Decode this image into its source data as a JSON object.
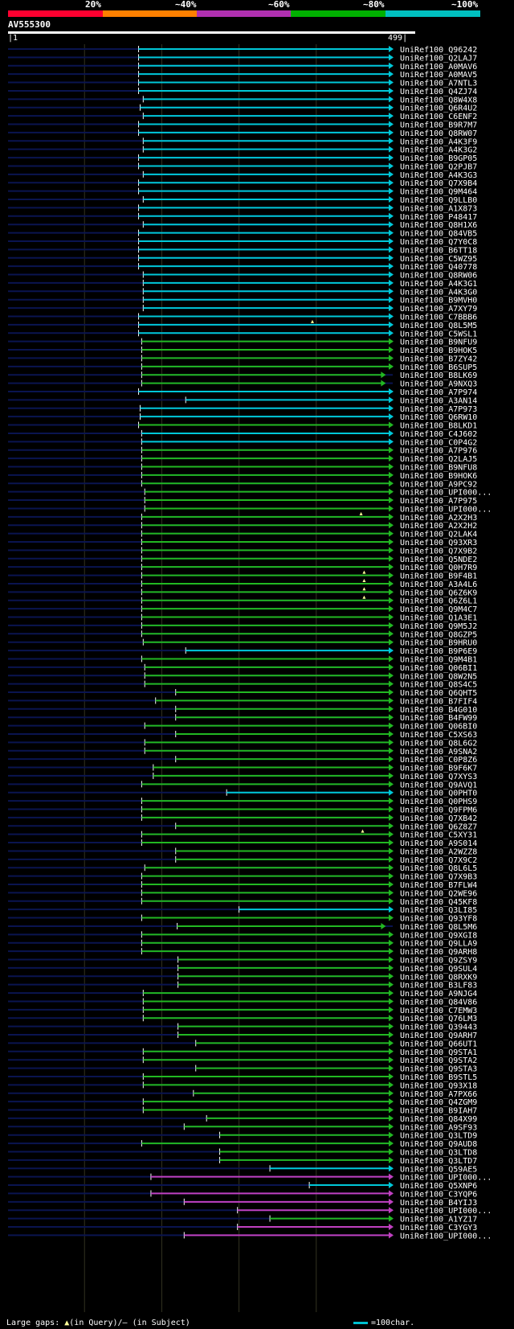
{
  "scale": {
    "labels": [
      "20%",
      "~40%",
      "~60%",
      "~80%",
      "~100%"
    ],
    "colors": [
      "#ff0030",
      "#ff8000",
      "#b030b0",
      "#00b000",
      "#00c0c0"
    ]
  },
  "query": {
    "name": "AV555300",
    "start_label": "1",
    "end_label": "499",
    "length": 499
  },
  "footer": {
    "gaps_prefix": "Large gaps: ",
    "gaps_query": "(in Query)/",
    "gaps_dash": "–",
    "gaps_subject": " (in Subject)",
    "legend_label": "=100char."
  },
  "colors": {
    "cyan": "#00c8d8",
    "green": "#22b822",
    "magenta": "#c040c0",
    "dim": "#0a1450",
    "grid": "#333322",
    "gap_marker": "#ffff99"
  },
  "chart_data": {
    "type": "alignment",
    "x_range": [
      1,
      499
    ],
    "hits": [
      {
        "name": "UniRef100_Q96242",
        "start": 170,
        "end": 499,
        "color": "cyan"
      },
      {
        "name": "UniRef100_Q2LAJ7",
        "start": 170,
        "end": 499,
        "color": "cyan"
      },
      {
        "name": "UniRef100_A0MAV6",
        "start": 170,
        "end": 499,
        "color": "cyan"
      },
      {
        "name": "UniRef100_A0MAV5",
        "start": 170,
        "end": 499,
        "color": "cyan"
      },
      {
        "name": "UniRef100_A7NTL3",
        "start": 170,
        "end": 499,
        "color": "cyan"
      },
      {
        "name": "UniRef100_Q4ZJ74",
        "start": 170,
        "end": 499,
        "color": "cyan"
      },
      {
        "name": "UniRef100_Q8W4X8",
        "start": 176,
        "end": 499,
        "color": "cyan"
      },
      {
        "name": "UniRef100_Q6R4U2",
        "start": 172,
        "end": 499,
        "color": "cyan"
      },
      {
        "name": "UniRef100_C6ENF2",
        "start": 176,
        "end": 499,
        "color": "cyan"
      },
      {
        "name": "UniRef100_B9R7M7",
        "start": 170,
        "end": 499,
        "color": "cyan"
      },
      {
        "name": "UniRef100_Q8RW07",
        "start": 170,
        "end": 499,
        "color": "cyan"
      },
      {
        "name": "UniRef100_A4K3F9",
        "start": 176,
        "end": 499,
        "color": "cyan"
      },
      {
        "name": "UniRef100_A4K3G2",
        "start": 176,
        "end": 499,
        "color": "cyan"
      },
      {
        "name": "UniRef100_B9GP05",
        "start": 170,
        "end": 499,
        "color": "cyan"
      },
      {
        "name": "UniRef100_Q2PJB7",
        "start": 170,
        "end": 499,
        "color": "cyan"
      },
      {
        "name": "UniRef100_A4K3G3",
        "start": 176,
        "end": 499,
        "color": "cyan"
      },
      {
        "name": "UniRef100_Q7X9B4",
        "start": 170,
        "end": 499,
        "color": "cyan"
      },
      {
        "name": "UniRef100_Q9M464",
        "start": 170,
        "end": 499,
        "color": "cyan"
      },
      {
        "name": "UniRef100_Q9LLB0",
        "start": 176,
        "end": 499,
        "color": "cyan"
      },
      {
        "name": "UniRef100_A1X873",
        "start": 170,
        "end": 499,
        "color": "cyan"
      },
      {
        "name": "UniRef100_P48417",
        "start": 170,
        "end": 499,
        "color": "cyan"
      },
      {
        "name": "UniRef100_Q8H1X6",
        "start": 176,
        "end": 499,
        "color": "cyan"
      },
      {
        "name": "UniRef100_Q84VB5",
        "start": 170,
        "end": 499,
        "color": "cyan"
      },
      {
        "name": "UniRef100_Q7Y0C8",
        "start": 170,
        "end": 499,
        "color": "cyan"
      },
      {
        "name": "UniRef100_B6TT18",
        "start": 170,
        "end": 499,
        "color": "cyan"
      },
      {
        "name": "UniRef100_C5WZ95",
        "start": 170,
        "end": 499,
        "color": "cyan"
      },
      {
        "name": "UniRef100_Q40778",
        "start": 170,
        "end": 499,
        "color": "cyan"
      },
      {
        "name": "UniRef100_Q8RW06",
        "start": 176,
        "end": 499,
        "color": "cyan"
      },
      {
        "name": "UniRef100_A4K3G1",
        "start": 176,
        "end": 499,
        "color": "cyan"
      },
      {
        "name": "UniRef100_A4K3G0",
        "start": 176,
        "end": 499,
        "color": "cyan"
      },
      {
        "name": "UniRef100_B9MVH0",
        "start": 176,
        "end": 499,
        "color": "cyan"
      },
      {
        "name": "UniRef100_A7XY79",
        "start": 176,
        "end": 499,
        "color": "cyan"
      },
      {
        "name": "UniRef100_C7BBB6",
        "start": 170,
        "end": 499,
        "color": "cyan"
      },
      {
        "name": "UniRef100_Q8L5M5",
        "start": 170,
        "end": 499,
        "color": "cyan",
        "gap": 395
      },
      {
        "name": "UniRef100_C5WSL1",
        "start": 170,
        "end": 499,
        "color": "cyan"
      },
      {
        "name": "UniRef100_B9NFU9",
        "start": 174,
        "end": 499,
        "color": "green"
      },
      {
        "name": "UniRef100_B9HOK5",
        "start": 174,
        "end": 499,
        "color": "green"
      },
      {
        "name": "UniRef100_B7ZY42",
        "start": 174,
        "end": 499,
        "color": "green"
      },
      {
        "name": "UniRef100_B6SUP5",
        "start": 174,
        "end": 499,
        "color": "green"
      },
      {
        "name": "UniRef100_B8LK69",
        "start": 174,
        "end": 489,
        "color": "green"
      },
      {
        "name": "UniRef100_A9NXQ3",
        "start": 174,
        "end": 489,
        "color": "green"
      },
      {
        "name": "UniRef100_A7P974",
        "start": 170,
        "end": 499,
        "color": "cyan"
      },
      {
        "name": "UniRef100_A3AN14",
        "start": 231,
        "end": 499,
        "color": "cyan"
      },
      {
        "name": "UniRef100_A7P973",
        "start": 172,
        "end": 499,
        "color": "cyan"
      },
      {
        "name": "UniRef100_Q6RW10",
        "start": 172,
        "end": 499,
        "color": "cyan"
      },
      {
        "name": "UniRef100_B8LKD1",
        "start": 170,
        "end": 499,
        "color": "green"
      },
      {
        "name": "UniRef100_C4J602",
        "start": 174,
        "end": 499,
        "color": "cyan"
      },
      {
        "name": "UniRef100_C0P4G2",
        "start": 174,
        "end": 499,
        "color": "cyan"
      },
      {
        "name": "UniRef100_A7P976",
        "start": 174,
        "end": 499,
        "color": "green"
      },
      {
        "name": "UniRef100_Q2LAJ5",
        "start": 174,
        "end": 499,
        "color": "green"
      },
      {
        "name": "UniRef100_B9NFU8",
        "start": 174,
        "end": 499,
        "color": "green"
      },
      {
        "name": "UniRef100_B9HOK6",
        "start": 174,
        "end": 499,
        "color": "green"
      },
      {
        "name": "UniRef100_A9PC92",
        "start": 174,
        "end": 499,
        "color": "green"
      },
      {
        "name": "UniRef100_UPI000...",
        "start": 178,
        "end": 499,
        "color": "green"
      },
      {
        "name": "UniRef100_A7P975",
        "start": 178,
        "end": 499,
        "color": "green"
      },
      {
        "name": "UniRef100_UPI000...",
        "start": 178,
        "end": 499,
        "color": "green"
      },
      {
        "name": "UniRef100_A2X2H3",
        "start": 174,
        "end": 499,
        "color": "green",
        "gap": 458
      },
      {
        "name": "UniRef100_A2X2H2",
        "start": 174,
        "end": 499,
        "color": "green"
      },
      {
        "name": "UniRef100_Q2LAK4",
        "start": 174,
        "end": 499,
        "color": "green"
      },
      {
        "name": "UniRef100_Q93XR3",
        "start": 174,
        "end": 499,
        "color": "green"
      },
      {
        "name": "UniRef100_Q7X9B2",
        "start": 174,
        "end": 499,
        "color": "green"
      },
      {
        "name": "UniRef100_Q5NDE2",
        "start": 174,
        "end": 499,
        "color": "green"
      },
      {
        "name": "UniRef100_Q0H7R9",
        "start": 174,
        "end": 499,
        "color": "green"
      },
      {
        "name": "UniRef100_B9F4B1",
        "start": 174,
        "end": 499,
        "color": "green",
        "gap": 462
      },
      {
        "name": "UniRef100_A3A4L6",
        "start": 174,
        "end": 499,
        "color": "green",
        "gap": 462
      },
      {
        "name": "UniRef100_Q6Z6K9",
        "start": 174,
        "end": 499,
        "color": "green",
        "gap": 462
      },
      {
        "name": "UniRef100_Q6Z6L1",
        "start": 174,
        "end": 499,
        "color": "green",
        "gap": 462
      },
      {
        "name": "UniRef100_Q9M4C7",
        "start": 174,
        "end": 499,
        "color": "green"
      },
      {
        "name": "UniRef100_Q1A3E1",
        "start": 174,
        "end": 499,
        "color": "green"
      },
      {
        "name": "UniRef100_Q9M5J2",
        "start": 174,
        "end": 499,
        "color": "green"
      },
      {
        "name": "UniRef100_Q8GZP5",
        "start": 174,
        "end": 499,
        "color": "green"
      },
      {
        "name": "UniRef100_B9HRU0",
        "start": 176,
        "end": 499,
        "color": "green"
      },
      {
        "name": "UniRef100_B9P6E9",
        "start": 231,
        "end": 499,
        "color": "cyan"
      },
      {
        "name": "UniRef100_Q9M4B1",
        "start": 174,
        "end": 499,
        "color": "green"
      },
      {
        "name": "UniRef100_Q06BI1",
        "start": 178,
        "end": 499,
        "color": "green"
      },
      {
        "name": "UniRef100_Q8W2N5",
        "start": 178,
        "end": 499,
        "color": "green"
      },
      {
        "name": "UniRef100_Q8S4C5",
        "start": 178,
        "end": 499,
        "color": "green"
      },
      {
        "name": "UniRef100_Q6QHT5",
        "start": 218,
        "end": 499,
        "color": "green"
      },
      {
        "name": "UniRef100_B7FIF4",
        "start": 192,
        "end": 499,
        "color": "green"
      },
      {
        "name": "UniRef100_B4G010",
        "start": 218,
        "end": 499,
        "color": "green"
      },
      {
        "name": "UniRef100_B4FW99",
        "start": 218,
        "end": 499,
        "color": "green"
      },
      {
        "name": "UniRef100_Q06BI0",
        "start": 178,
        "end": 499,
        "color": "green"
      },
      {
        "name": "UniRef100_C5XS63",
        "start": 218,
        "end": 499,
        "color": "green"
      },
      {
        "name": "UniRef100_Q8L6G2",
        "start": 178,
        "end": 499,
        "color": "green"
      },
      {
        "name": "UniRef100_A9SNA2",
        "start": 178,
        "end": 499,
        "color": "green"
      },
      {
        "name": "UniRef100_C0P8Z6",
        "start": 218,
        "end": 499,
        "color": "green"
      },
      {
        "name": "UniRef100_B9F6K7",
        "start": 189,
        "end": 499,
        "color": "green"
      },
      {
        "name": "UniRef100_Q7XYS3",
        "start": 189,
        "end": 499,
        "color": "green"
      },
      {
        "name": "UniRef100_Q9AVQ1",
        "start": 174,
        "end": 499,
        "color": "green"
      },
      {
        "name": "UniRef100_Q0PHT0",
        "start": 284,
        "end": 499,
        "color": "cyan"
      },
      {
        "name": "UniRef100_Q0PHS9",
        "start": 174,
        "end": 499,
        "color": "green"
      },
      {
        "name": "UniRef100_Q9FPM6",
        "start": 174,
        "end": 499,
        "color": "green"
      },
      {
        "name": "UniRef100_Q7XB42",
        "start": 174,
        "end": 499,
        "color": "green"
      },
      {
        "name": "UniRef100_Q6Z8Z7",
        "start": 218,
        "end": 499,
        "color": "green"
      },
      {
        "name": "UniRef100_C5XY31",
        "start": 174,
        "end": 499,
        "color": "green",
        "gap": 460
      },
      {
        "name": "UniRef100_A9S014",
        "start": 174,
        "end": 499,
        "color": "green"
      },
      {
        "name": "UniRef100_A2WZZ8",
        "start": 218,
        "end": 499,
        "color": "green"
      },
      {
        "name": "UniRef100_Q7X9C2",
        "start": 218,
        "end": 499,
        "color": "green"
      },
      {
        "name": "UniRef100_Q8L6L5",
        "start": 178,
        "end": 499,
        "color": "green"
      },
      {
        "name": "UniRef100_Q7X9B3",
        "start": 174,
        "end": 499,
        "color": "green"
      },
      {
        "name": "UniRef100_B7FLW4",
        "start": 174,
        "end": 499,
        "color": "green"
      },
      {
        "name": "UniRef100_Q2WE96",
        "start": 174,
        "end": 499,
        "color": "green"
      },
      {
        "name": "UniRef100_Q45KF8",
        "start": 174,
        "end": 499,
        "color": "green"
      },
      {
        "name": "UniRef100_Q3LI85",
        "start": 300,
        "end": 499,
        "color": "cyan"
      },
      {
        "name": "UniRef100_Q93YF8",
        "start": 174,
        "end": 499,
        "color": "green"
      },
      {
        "name": "UniRef100_Q8L5M6",
        "start": 220,
        "end": 489,
        "color": "green"
      },
      {
        "name": "UniRef100_Q9XGI8",
        "start": 174,
        "end": 499,
        "color": "green"
      },
      {
        "name": "UniRef100_Q9LLA9",
        "start": 174,
        "end": 499,
        "color": "green"
      },
      {
        "name": "UniRef100_Q9ARH8",
        "start": 174,
        "end": 499,
        "color": "green"
      },
      {
        "name": "UniRef100_Q9ZSY9",
        "start": 221,
        "end": 499,
        "color": "green"
      },
      {
        "name": "UniRef100_Q9SUL4",
        "start": 221,
        "end": 499,
        "color": "green"
      },
      {
        "name": "UniRef100_Q8RXK9",
        "start": 221,
        "end": 499,
        "color": "green"
      },
      {
        "name": "UniRef100_B3LF83",
        "start": 221,
        "end": 499,
        "color": "green"
      },
      {
        "name": "UniRef100_A9NJG4",
        "start": 176,
        "end": 499,
        "color": "green"
      },
      {
        "name": "UniRef100_Q84V86",
        "start": 176,
        "end": 499,
        "color": "green"
      },
      {
        "name": "UniRef100_C7EMW3",
        "start": 176,
        "end": 499,
        "color": "green"
      },
      {
        "name": "UniRef100_Q76LM3",
        "start": 176,
        "end": 499,
        "color": "green"
      },
      {
        "name": "UniRef100_Q39443",
        "start": 221,
        "end": 499,
        "color": "green"
      },
      {
        "name": "UniRef100_Q9ARH7",
        "start": 221,
        "end": 499,
        "color": "green"
      },
      {
        "name": "UniRef100_Q66UT1",
        "start": 244,
        "end": 499,
        "color": "green"
      },
      {
        "name": "UniRef100_Q9STA1",
        "start": 176,
        "end": 499,
        "color": "green"
      },
      {
        "name": "UniRef100_Q9STA2",
        "start": 176,
        "end": 499,
        "color": "green"
      },
      {
        "name": "UniRef100_Q9STA3",
        "start": 244,
        "end": 499,
        "color": "green"
      },
      {
        "name": "UniRef100_B9STL5",
        "start": 176,
        "end": 499,
        "color": "green"
      },
      {
        "name": "UniRef100_Q93X18",
        "start": 176,
        "end": 499,
        "color": "green"
      },
      {
        "name": "UniRef100_A7PX66",
        "start": 241,
        "end": 499,
        "color": "green"
      },
      {
        "name": "UniRef100_Q4ZGM9",
        "start": 176,
        "end": 499,
        "color": "green"
      },
      {
        "name": "UniRef100_B9IAH7",
        "start": 176,
        "end": 499,
        "color": "green"
      },
      {
        "name": "UniRef100_Q84X99",
        "start": 258,
        "end": 499,
        "color": "green"
      },
      {
        "name": "UniRef100_A9SF93",
        "start": 229,
        "end": 499,
        "color": "green"
      },
      {
        "name": "UniRef100_Q3LTD9",
        "start": 275,
        "end": 499,
        "color": "green"
      },
      {
        "name": "UniRef100_Q9AUD8",
        "start": 174,
        "end": 499,
        "color": "green"
      },
      {
        "name": "UniRef100_Q3LTD8",
        "start": 275,
        "end": 499,
        "color": "green"
      },
      {
        "name": "UniRef100_Q3LTD7",
        "start": 275,
        "end": 499,
        "color": "green"
      },
      {
        "name": "UniRef100_Q59AE5",
        "start": 340,
        "end": 499,
        "color": "cyan"
      },
      {
        "name": "UniRef100_UPI000...",
        "start": 186,
        "end": 499,
        "color": "magenta"
      },
      {
        "name": "UniRef100_Q5XNP6",
        "start": 391,
        "end": 499,
        "color": "cyan"
      },
      {
        "name": "UniRef100_C3YQP6",
        "start": 186,
        "end": 499,
        "color": "magenta"
      },
      {
        "name": "UniRef100_B4YIJ3",
        "start": 229,
        "end": 499,
        "color": "magenta"
      },
      {
        "name": "UniRef100_UPI000...",
        "start": 298,
        "end": 499,
        "color": "magenta"
      },
      {
        "name": "UniRef100_A1YZ17",
        "start": 340,
        "end": 499,
        "color": "green"
      },
      {
        "name": "UniRef100_C3YGY3",
        "start": 298,
        "end": 499,
        "color": "magenta"
      },
      {
        "name": "UniRef100_UPI000...",
        "start": 229,
        "end": 499,
        "color": "magenta"
      }
    ]
  }
}
